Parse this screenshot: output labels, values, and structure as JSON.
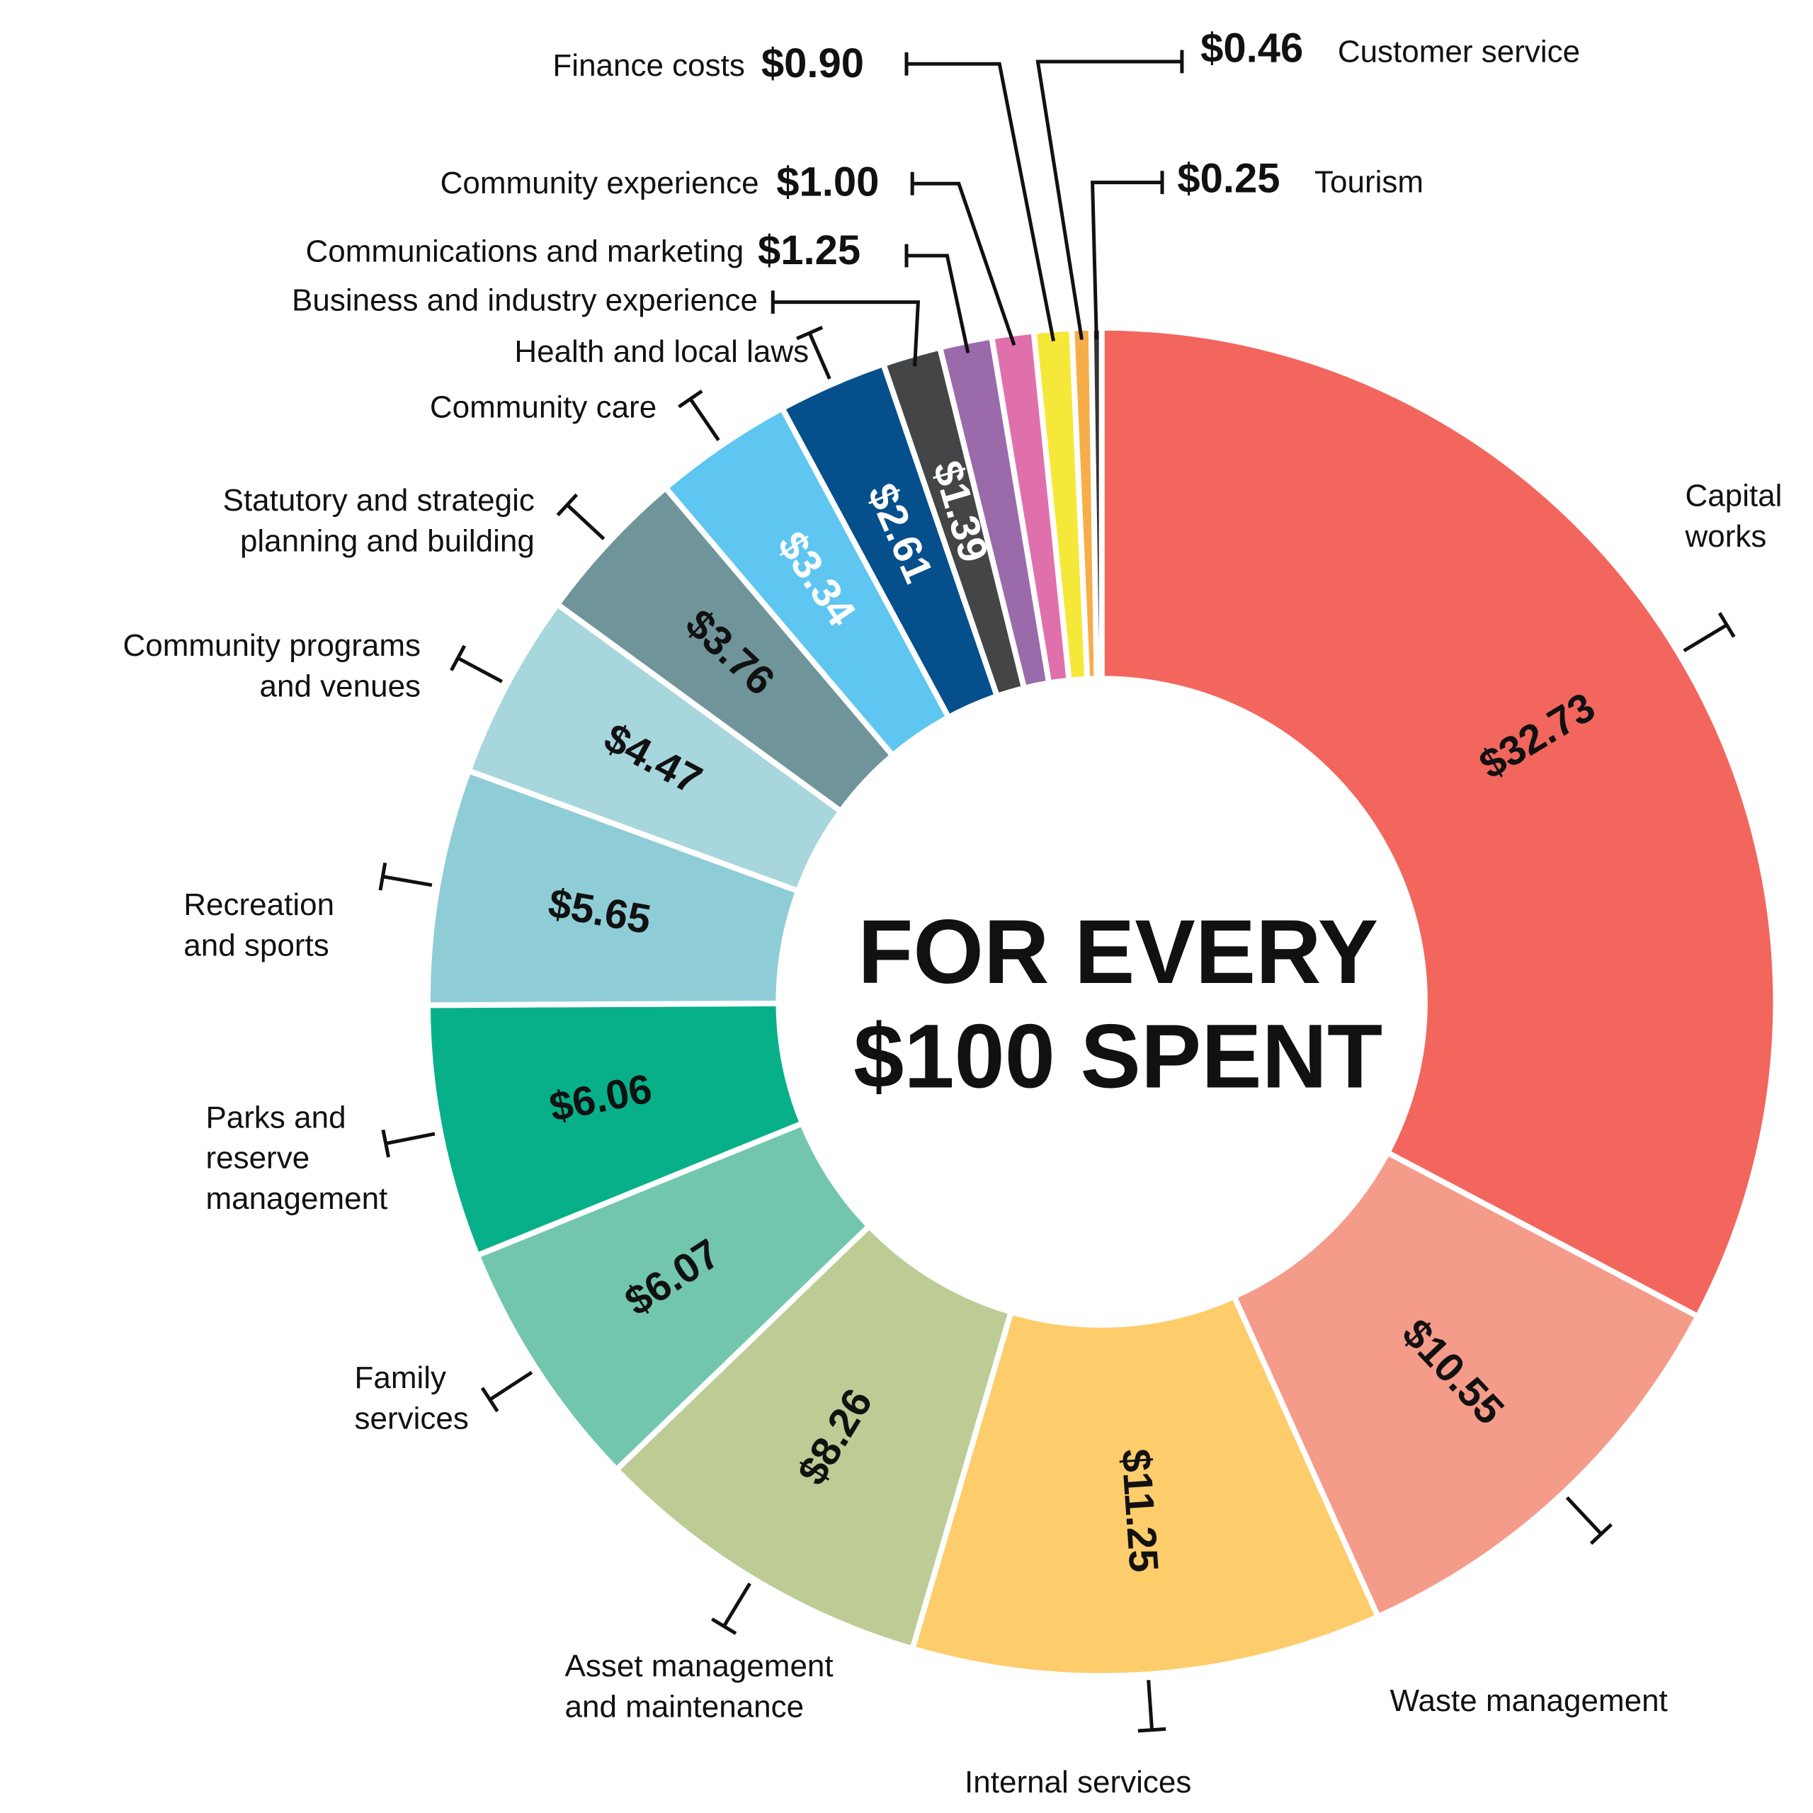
{
  "chart_data": {
    "type": "donut",
    "title": "FOR EVERY $100 SPENT",
    "categories": [
      "Capital works",
      "Waste management",
      "Internal services",
      "Asset management and maintenance",
      "Family services",
      "Parks and reserve management",
      "Recreation and sports",
      "Community programs and venues",
      "Statutory and strategic planning and building",
      "Community care",
      "Health and local laws",
      "Business and industry experience",
      "Communications and marketing",
      "Community experience",
      "Finance costs",
      "Customer service",
      "Tourism"
    ],
    "values": [
      32.73,
      10.55,
      11.25,
      8.26,
      6.07,
      6.06,
      5.65,
      4.47,
      3.76,
      3.34,
      2.61,
      1.39,
      1.25,
      1.0,
      0.9,
      0.46,
      0.25
    ],
    "value_labels": [
      "$32.73",
      "$10.55",
      "$11.25",
      "$8.26",
      "$6.07",
      "$6.06",
      "$5.65",
      "$4.47",
      "$3.76",
      "$3.34",
      "$2.61",
      "$1.39",
      "$1.25",
      "$1.00",
      "$0.90",
      "$0.46",
      "$0.25"
    ],
    "colors": [
      "#f2665e",
      "#f59b8a",
      "#fdcd6b",
      "#bdcb95",
      "#72c6ae",
      "#07b089",
      "#8fcdd6",
      "#a8d6dd",
      "#6f959b",
      "#5ec6f0",
      "#054f8c",
      "#444547",
      "#9b6aab",
      "#e070ab",
      "#f6e839",
      "#f7ad48",
      "#333333"
    ]
  }
}
